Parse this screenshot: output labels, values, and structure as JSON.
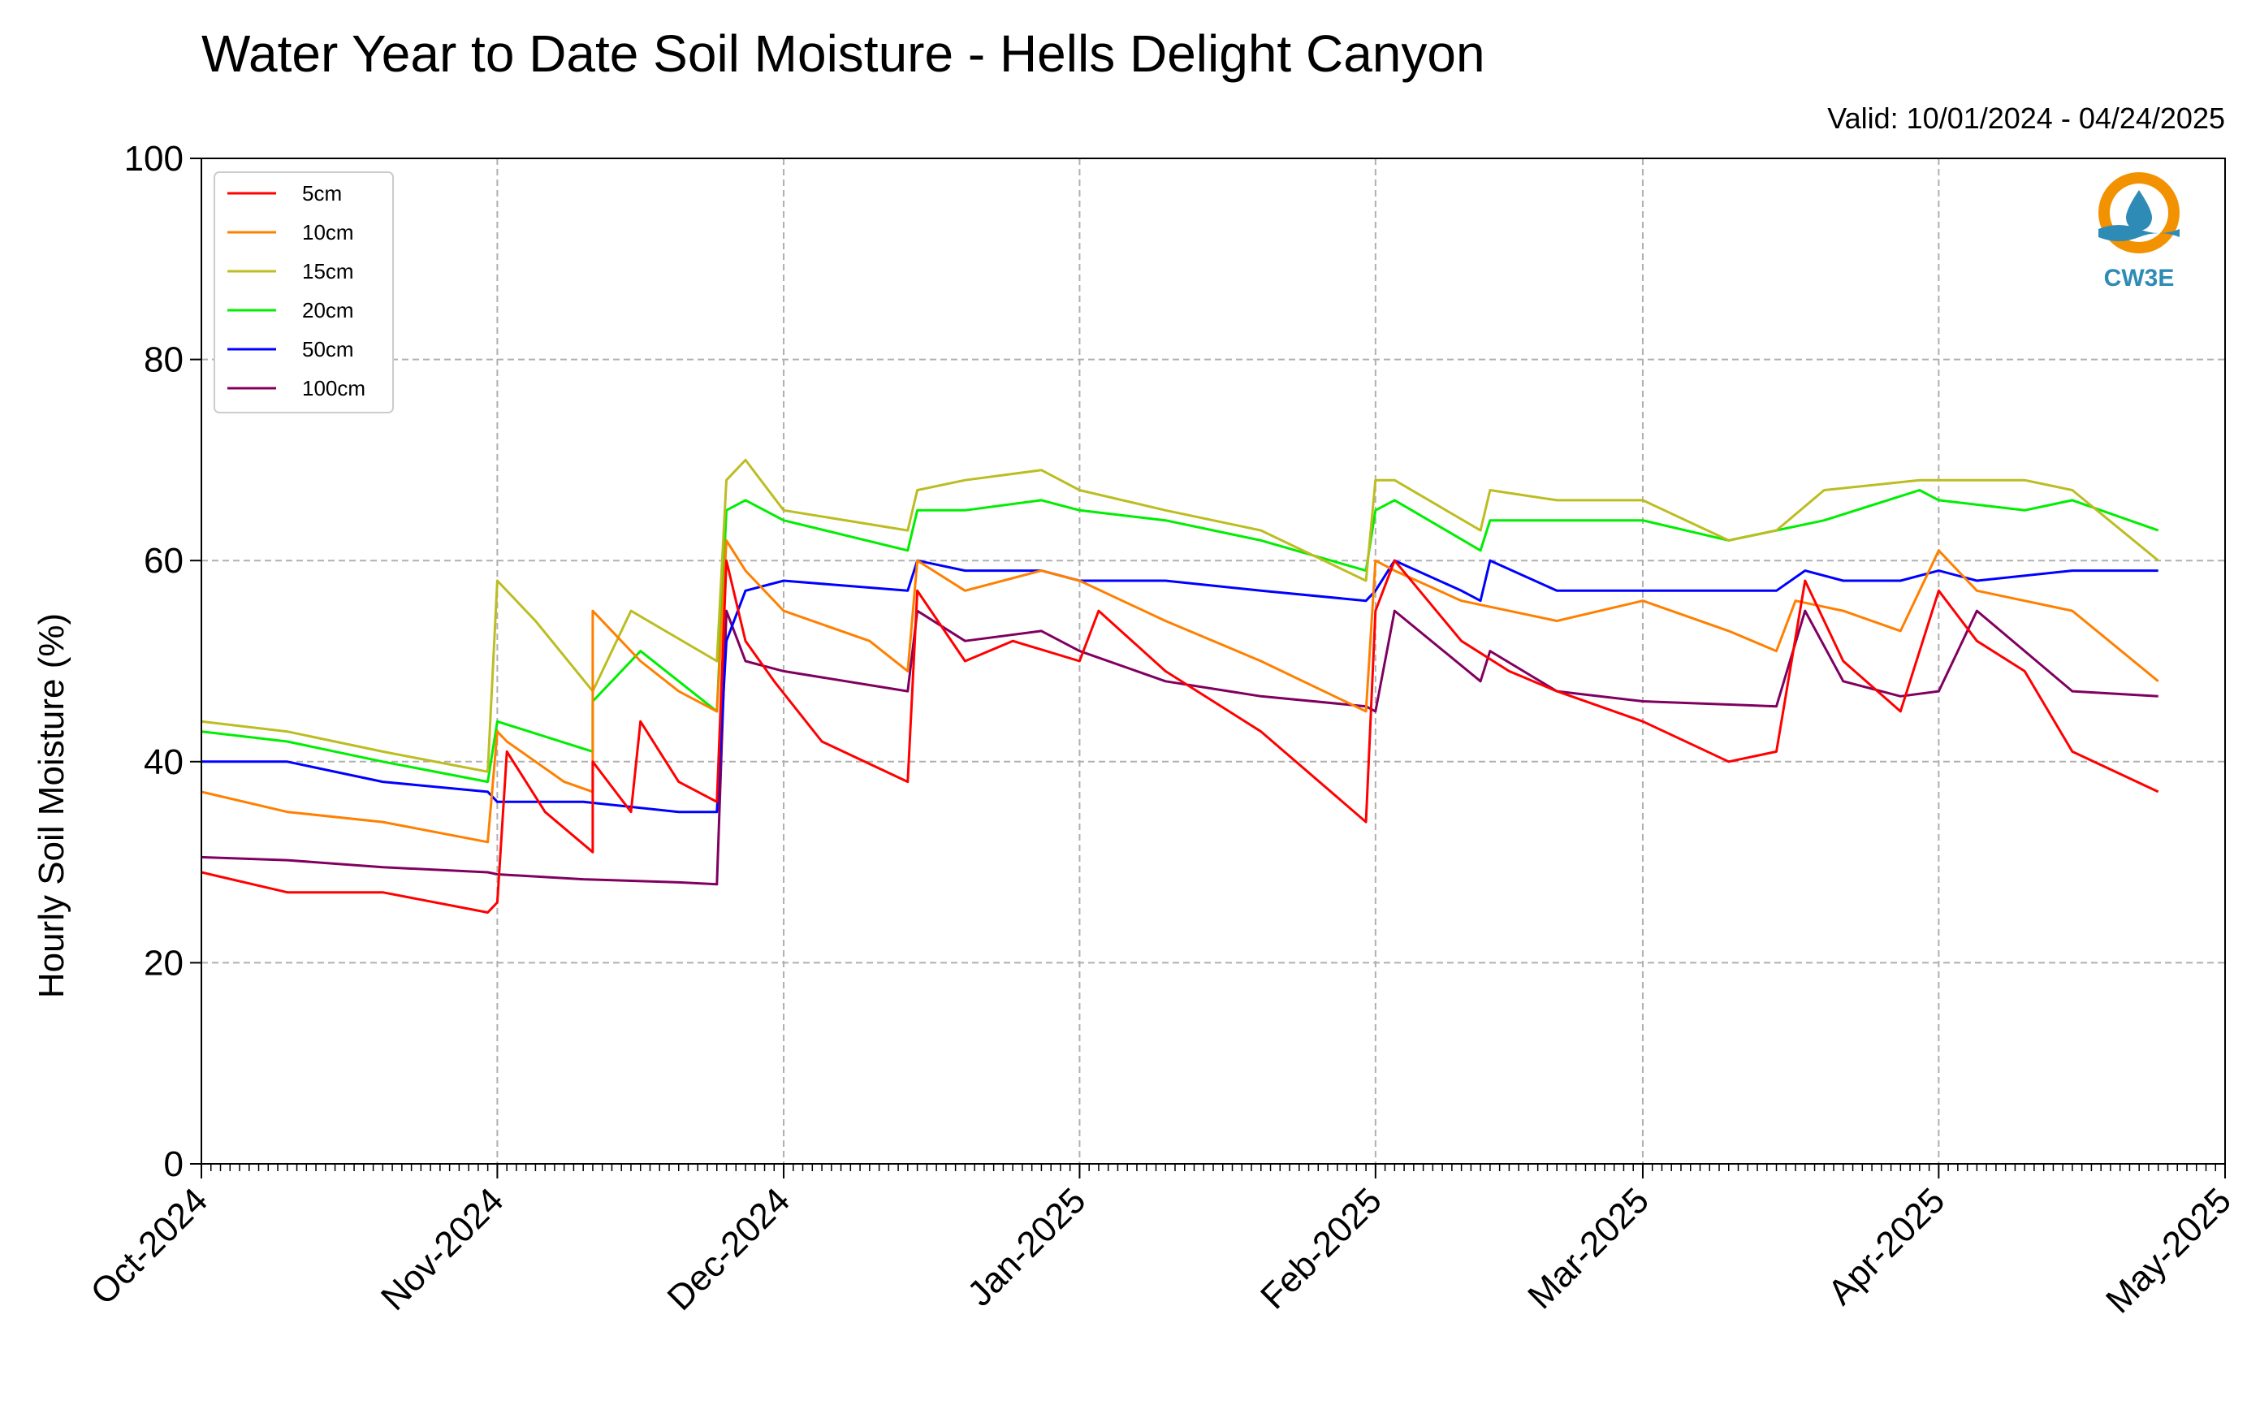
{
  "chart_data": {
    "type": "line",
    "title": "Water Year to Date Soil Moisture - Hells Delight Canyon",
    "subtitle": "Valid: 10/01/2024 - 04/24/2025",
    "ylabel": "Hourly Soil Moisture (%)",
    "xlabel": "",
    "ylim": [
      0,
      100
    ],
    "yticks": [
      "0",
      "20",
      "40",
      "60",
      "80",
      "100"
    ],
    "xlim": [
      "2024-10-01",
      "2025-05-01"
    ],
    "xticks": [
      "Oct-2024",
      "Nov-2024",
      "Dec-2024",
      "Jan-2025",
      "Feb-2025",
      "Mar-2025",
      "Apr-2025",
      "May-2025"
    ],
    "xtick_dates": [
      "2024-10-01",
      "2024-11-01",
      "2024-12-01",
      "2025-01-01",
      "2025-02-01",
      "2025-03-01",
      "2025-04-01",
      "2025-05-01"
    ],
    "grid": true,
    "legend_position": "top-left",
    "series": [
      {
        "name": "5cm",
        "color": "#ff0000",
        "x": [
          "2024-10-01",
          "2024-10-10",
          "2024-10-20",
          "2024-10-31",
          "2024-11-01",
          "2024-11-02",
          "2024-11-06",
          "2024-11-11",
          "2024-11-11",
          "2024-11-15",
          "2024-11-16",
          "2024-11-20",
          "2024-11-24",
          "2024-11-25",
          "2024-11-27",
          "2024-11-30",
          "2024-12-05",
          "2024-12-14",
          "2024-12-15",
          "2024-12-20",
          "2024-12-25",
          "2025-01-01",
          "2025-01-03",
          "2025-01-10",
          "2025-01-20",
          "2025-01-31",
          "2025-02-01",
          "2025-02-03",
          "2025-02-10",
          "2025-02-15",
          "2025-02-20",
          "2025-03-01",
          "2025-03-10",
          "2025-03-15",
          "2025-03-18",
          "2025-03-22",
          "2025-03-28",
          "2025-04-01",
          "2025-04-05",
          "2025-04-10",
          "2025-04-15",
          "2025-04-24"
        ],
        "y": [
          29,
          27,
          27,
          25,
          26,
          41,
          35,
          31,
          40,
          35,
          44,
          38,
          36,
          60,
          52,
          48,
          42,
          38,
          57,
          50,
          52,
          50,
          55,
          49,
          43,
          34,
          55,
          60,
          52,
          49,
          47,
          44,
          40,
          41,
          58,
          50,
          45,
          57,
          52,
          49,
          41,
          37
        ]
      },
      {
        "name": "10cm",
        "color": "#ff8000",
        "x": [
          "2024-10-01",
          "2024-10-10",
          "2024-10-20",
          "2024-10-31",
          "2024-11-01",
          "2024-11-02",
          "2024-11-08",
          "2024-11-11",
          "2024-11-11",
          "2024-11-16",
          "2024-11-20",
          "2024-11-24",
          "2024-11-25",
          "2024-11-27",
          "2024-12-01",
          "2024-12-10",
          "2024-12-14",
          "2024-12-15",
          "2024-12-20",
          "2024-12-28",
          "2025-01-01",
          "2025-01-10",
          "2025-01-20",
          "2025-01-31",
          "2025-02-01",
          "2025-02-03",
          "2025-02-10",
          "2025-02-20",
          "2025-03-01",
          "2025-03-10",
          "2025-03-15",
          "2025-03-17",
          "2025-03-22",
          "2025-03-28",
          "2025-04-01",
          "2025-04-05",
          "2025-04-15",
          "2025-04-24"
        ],
        "y": [
          37,
          35,
          34,
          32,
          43,
          42,
          38,
          37,
          55,
          50,
          47,
          45,
          62,
          59,
          55,
          52,
          49,
          60,
          57,
          59,
          58,
          54,
          50,
          45,
          60,
          59,
          56,
          54,
          56,
          53,
          51,
          56,
          55,
          53,
          61,
          57,
          55,
          48
        ]
      },
      {
        "name": "15cm",
        "color": "#bcbd22",
        "x": [
          "2024-10-01",
          "2024-10-10",
          "2024-10-20",
          "2024-10-31",
          "2024-11-01",
          "2024-11-05",
          "2024-11-11",
          "2024-11-15",
          "2024-11-24",
          "2024-11-25",
          "2024-11-27",
          "2024-12-01",
          "2024-12-14",
          "2024-12-15",
          "2024-12-20",
          "2024-12-28",
          "2025-01-01",
          "2025-01-10",
          "2025-01-20",
          "2025-01-31",
          "2025-02-01",
          "2025-02-03",
          "2025-02-12",
          "2025-02-13",
          "2025-02-20",
          "2025-03-01",
          "2025-03-10",
          "2025-03-15",
          "2025-03-20",
          "2025-03-30",
          "2025-04-01",
          "2025-04-10",
          "2025-04-15",
          "2025-04-24"
        ],
        "y": [
          44,
          43,
          41,
          39,
          58,
          54,
          47,
          55,
          50,
          68,
          70,
          65,
          63,
          67,
          68,
          69,
          67,
          65,
          63,
          58,
          68,
          68,
          63,
          67,
          66,
          66,
          62,
          63,
          67,
          68,
          68,
          68,
          67,
          60
        ]
      },
      {
        "name": "20cm",
        "color": "#00ee00",
        "x": [
          "2024-10-01",
          "2024-10-10",
          "2024-10-20",
          "2024-10-31",
          "2024-11-01",
          "2024-11-11",
          "2024-11-11",
          "2024-11-16",
          "2024-11-24",
          "2024-11-25",
          "2024-11-27",
          "2024-12-01",
          "2024-12-14",
          "2024-12-15",
          "2024-12-20",
          "2024-12-28",
          "2025-01-01",
          "2025-01-10",
          "2025-01-20",
          "2025-01-31",
          "2025-02-01",
          "2025-02-03",
          "2025-02-12",
          "2025-02-13",
          "2025-02-20",
          "2025-03-01",
          "2025-03-10",
          "2025-03-20",
          "2025-03-30",
          "2025-04-01",
          "2025-04-10",
          "2025-04-15",
          "2025-04-24"
        ],
        "y": [
          43,
          42,
          40,
          38,
          44,
          41,
          46,
          51,
          45,
          65,
          66,
          64,
          61,
          65,
          65,
          66,
          65,
          64,
          62,
          59,
          65,
          66,
          61,
          64,
          64,
          64,
          62,
          64,
          67,
          66,
          65,
          66,
          63
        ]
      },
      {
        "name": "50cm",
        "color": "#0000ff",
        "x": [
          "2024-10-01",
          "2024-10-10",
          "2024-10-20",
          "2024-10-31",
          "2024-11-01",
          "2024-11-10",
          "2024-11-20",
          "2024-11-24",
          "2024-11-25",
          "2024-11-27",
          "2024-12-01",
          "2024-12-14",
          "2024-12-15",
          "2024-12-20",
          "2024-12-28",
          "2025-01-01",
          "2025-01-10",
          "2025-01-20",
          "2025-01-31",
          "2025-02-01",
          "2025-02-03",
          "2025-02-10",
          "2025-02-12",
          "2025-02-13",
          "2025-02-20",
          "2025-03-01",
          "2025-03-15",
          "2025-03-18",
          "2025-03-22",
          "2025-03-28",
          "2025-04-01",
          "2025-04-05",
          "2025-04-15",
          "2025-04-24"
        ],
        "y": [
          40,
          40,
          38,
          37,
          36,
          36,
          35,
          35,
          52,
          57,
          58,
          57,
          60,
          59,
          59,
          58,
          58,
          57,
          56,
          57,
          60,
          57,
          56,
          60,
          57,
          57,
          57,
          59,
          58,
          58,
          59,
          58,
          59,
          59
        ]
      },
      {
        "name": "100cm",
        "color": "#800060",
        "x": [
          "2024-10-01",
          "2024-10-10",
          "2024-10-20",
          "2024-10-31",
          "2024-11-01",
          "2024-11-10",
          "2024-11-20",
          "2024-11-24",
          "2024-11-25",
          "2024-11-27",
          "2024-12-01",
          "2024-12-14",
          "2024-12-15",
          "2024-12-20",
          "2024-12-28",
          "2025-01-01",
          "2025-01-10",
          "2025-01-20",
          "2025-01-31",
          "2025-02-01",
          "2025-02-03",
          "2025-02-12",
          "2025-02-13",
          "2025-02-20",
          "2025-03-01",
          "2025-03-15",
          "2025-03-18",
          "2025-03-22",
          "2025-03-28",
          "2025-04-01",
          "2025-04-05",
          "2025-04-15",
          "2025-04-24"
        ],
        "y": [
          30.5,
          30.2,
          29.5,
          29,
          28.8,
          28.3,
          28,
          27.8,
          55,
          50,
          49,
          47,
          55,
          52,
          53,
          51,
          48,
          46.5,
          45.5,
          45,
          55,
          48,
          51,
          47,
          46,
          45.5,
          55,
          48,
          46.5,
          47,
          55,
          47,
          46.5
        ]
      }
    ]
  },
  "logo": {
    "text": "CW3E",
    "color": "#2e8bb5",
    "accent": "#f39200"
  }
}
